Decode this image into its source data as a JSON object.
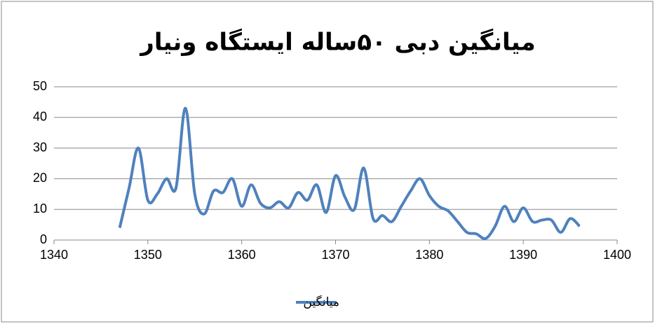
{
  "chart_data": {
    "type": "line",
    "title": "میانگین دبی ۵۰ساله ایستگاه ونیار",
    "x": [
      1347,
      1348,
      1349,
      1350,
      1351,
      1352,
      1353,
      1354,
      1355,
      1356,
      1357,
      1358,
      1359,
      1360,
      1361,
      1362,
      1363,
      1364,
      1365,
      1366,
      1367,
      1368,
      1369,
      1370,
      1371,
      1372,
      1373,
      1374,
      1375,
      1376,
      1377,
      1378,
      1379,
      1380,
      1381,
      1382,
      1383,
      1384,
      1385,
      1386,
      1387,
      1388,
      1389,
      1390,
      1391,
      1392,
      1393,
      1394,
      1395,
      1396
    ],
    "series": [
      {
        "name": "میانگین",
        "color": "#4f81bd",
        "values": [
          4,
          17,
          30,
          13,
          15,
          20,
          17,
          43,
          15,
          8.5,
          16,
          15.5,
          20,
          11,
          18,
          12,
          10.5,
          12.5,
          10.5,
          15.5,
          13,
          18,
          9,
          21,
          14,
          10,
          23.5,
          7,
          8,
          6,
          11,
          16,
          20,
          14.5,
          11,
          9.5,
          6,
          2.5,
          2,
          0.5,
          4.5,
          11,
          6,
          10.5,
          6,
          6.5,
          6.5,
          2.5,
          7,
          4.5
        ]
      }
    ],
    "xlim": [
      1340,
      1400
    ],
    "xticks": [
      1340,
      1350,
      1360,
      1370,
      1380,
      1390,
      1400
    ],
    "ylim": [
      0,
      50
    ],
    "yticks": [
      0,
      10,
      20,
      30,
      40,
      50
    ],
    "grid": true,
    "smooth": true,
    "legend": "bottom"
  }
}
